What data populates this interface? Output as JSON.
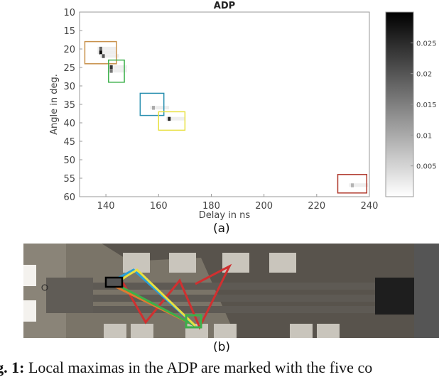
{
  "chart_data": {
    "type": "heatmap",
    "title": "ADP",
    "xlabel": "Delay in ns",
    "ylabel": "Angle in deg.",
    "xlim": [
      130,
      240
    ],
    "ylim": [
      60,
      10
    ],
    "xticks": [
      140,
      160,
      180,
      200,
      220,
      240
    ],
    "yticks": [
      10,
      15,
      20,
      25,
      30,
      35,
      40,
      45,
      50,
      55,
      60
    ],
    "colorbar": {
      "range": [
        0,
        0.03
      ],
      "ticks": [
        0.005,
        0.01,
        0.015,
        0.02,
        0.025
      ],
      "colormap": "gray-reversed"
    },
    "peaks": [
      {
        "delay": 138,
        "angle": 21,
        "value": 0.029
      },
      {
        "delay": 138,
        "angle": 20,
        "value": 0.018
      },
      {
        "delay": 139,
        "angle": 22,
        "value": 0.02
      },
      {
        "delay": 142,
        "angle": 25,
        "value": 0.024
      },
      {
        "delay": 142,
        "angle": 26,
        "value": 0.016
      },
      {
        "delay": 158,
        "angle": 36,
        "value": 0.01
      },
      {
        "delay": 164,
        "angle": 39,
        "value": 0.026
      },
      {
        "delay": 233.5,
        "angle": 57,
        "value": 0.009
      }
    ],
    "boxes": [
      {
        "color": "#c8904a",
        "delay": [
          132,
          144
        ],
        "angle": [
          18,
          24
        ]
      },
      {
        "color": "#3cb04a",
        "delay": [
          141,
          147
        ],
        "angle": [
          23,
          29
        ]
      },
      {
        "color": "#2a90b0",
        "delay": [
          153,
          162
        ],
        "angle": [
          32,
          38
        ]
      },
      {
        "color": "#e8e040",
        "delay": [
          160,
          170
        ],
        "angle": [
          37,
          42
        ]
      },
      {
        "color": "#b03a2e",
        "delay": [
          228,
          239
        ],
        "angle": [
          54,
          59
        ]
      }
    ]
  },
  "labels": {
    "a": "(a)",
    "b": "(b)"
  },
  "caption": {
    "prefix": "ig. 1:",
    "text": " Local maximas in the ADP are marked with the five co"
  },
  "scene": {
    "path_colors": [
      "#e8e040",
      "#2aa0d8",
      "#3cb04a",
      "#e07a30",
      "#d03030"
    ]
  }
}
